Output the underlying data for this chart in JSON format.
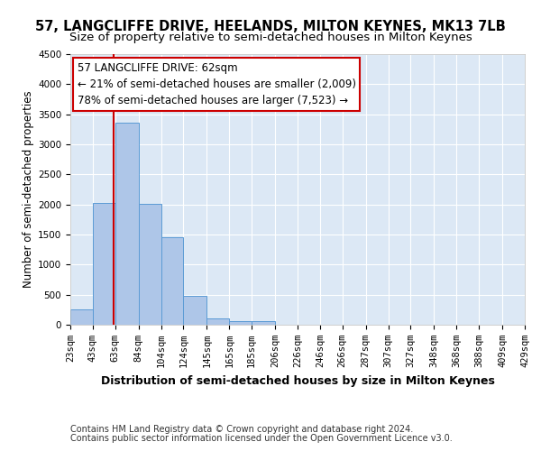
{
  "title": "57, LANGCLIFFE DRIVE, HEELANDS, MILTON KEYNES, MK13 7LB",
  "subtitle": "Size of property relative to semi-detached houses in Milton Keynes",
  "xlabel": "Distribution of semi-detached houses by size in Milton Keynes",
  "ylabel": "Number of semi-detached properties",
  "footer_line1": "Contains HM Land Registry data © Crown copyright and database right 2024.",
  "footer_line2": "Contains public sector information licensed under the Open Government Licence v3.0.",
  "annotation_title": "57 LANGCLIFFE DRIVE: 62sqm",
  "annotation_line1": "← 21% of semi-detached houses are smaller (2,009)",
  "annotation_line2": "78% of semi-detached houses are larger (7,523) →",
  "property_size": 62,
  "bar_left_edges": [
    23,
    43,
    63,
    84,
    104,
    124,
    145,
    165,
    185,
    206,
    226,
    246,
    266,
    287,
    307,
    327,
    348,
    368,
    388,
    409
  ],
  "bar_heights": [
    250,
    2030,
    3360,
    2010,
    1460,
    480,
    100,
    60,
    55,
    0,
    0,
    0,
    0,
    0,
    0,
    0,
    0,
    0,
    0,
    0
  ],
  "bar_color": "#aec6e8",
  "bar_edge_color": "#5b9bd5",
  "vline_color": "#cc0000",
  "vline_x": 62,
  "ylim": [
    0,
    4500
  ],
  "yticks": [
    0,
    500,
    1000,
    1500,
    2000,
    2500,
    3000,
    3500,
    4000,
    4500
  ],
  "x_tick_labels": [
    "23sqm",
    "43sqm",
    "63sqm",
    "84sqm",
    "104sqm",
    "124sqm",
    "145sqm",
    "165sqm",
    "185sqm",
    "206sqm",
    "226sqm",
    "246sqm",
    "266sqm",
    "287sqm",
    "307sqm",
    "327sqm",
    "348sqm",
    "368sqm",
    "388sqm",
    "409sqm",
    "429sqm"
  ],
  "background_color": "#dce8f5",
  "grid_color": "#ffffff",
  "fig_background_color": "#ffffff",
  "annotation_box_color": "#ffffff",
  "annotation_box_edge": "#cc0000",
  "title_fontsize": 10.5,
  "subtitle_fontsize": 9.5,
  "axis_label_fontsize": 8.5,
  "tick_fontsize": 7.5,
  "footer_fontsize": 7,
  "annotation_fontsize": 8.5
}
